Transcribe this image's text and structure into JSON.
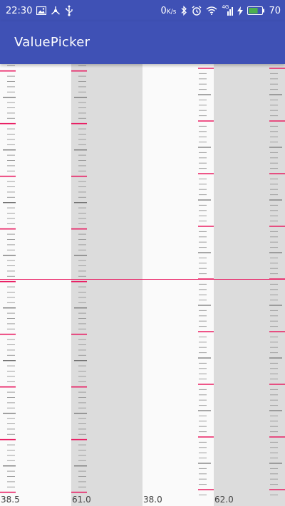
{
  "status_bar": {
    "time": "22:30",
    "left_icons": [
      "image-icon",
      "usb-share-icon",
      "usb-icon"
    ],
    "net_speed": "0",
    "net_unit": "K/s",
    "right_icons": [
      "bluetooth-icon",
      "alarm-icon",
      "wifi-icon",
      "signal-4g-icon",
      "charging-icon"
    ],
    "network_type": "4G",
    "battery_level": "70",
    "battery_fraction": 0.7
  },
  "app_bar": {
    "title": "ValuePicker"
  },
  "colors": {
    "primary": "#3f51b5",
    "accent": "#e91e63",
    "major_tick": "#e91e63",
    "mid_tick": "#757575",
    "minor_tick": "#9e9e9e",
    "light_column": "#fafafa",
    "dark_column": "#dcdcdc"
  },
  "pickers": [
    {
      "value": "38.5",
      "background": "light",
      "tick_side": "left"
    },
    {
      "value": "61.0",
      "background": "dark",
      "tick_side": "left"
    },
    {
      "value": "38.0",
      "background": "light",
      "tick_side": "right"
    },
    {
      "value": "62.0",
      "background": "dark",
      "tick_side": "right"
    }
  ]
}
